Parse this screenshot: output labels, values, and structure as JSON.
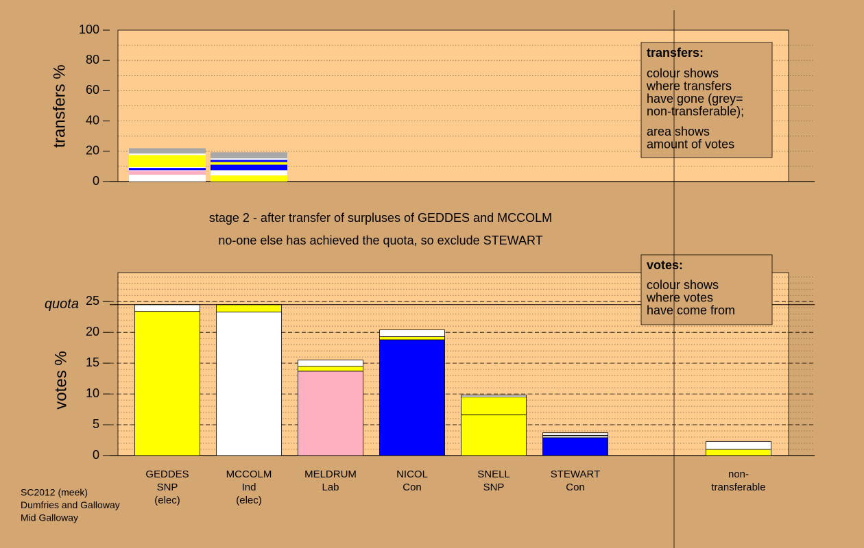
{
  "chart_data": [
    {
      "type": "stacked_bar",
      "ylabel": "transfers %",
      "ylim": [
        0,
        100
      ],
      "yticks": [
        0,
        20,
        40,
        60,
        80,
        100
      ],
      "minor_step": 10,
      "grid": true,
      "stacks": [
        {
          "segments": [
            {
              "color": "#ffffff",
              "value": 4.5
            },
            {
              "color": "#ffb0c0",
              "value": 2.5
            },
            {
              "color": "#ffffff",
              "value": 0.5
            },
            {
              "color": "#0000ff",
              "value": 1.5
            },
            {
              "color": "#ffffff",
              "value": 0.5
            },
            {
              "color": "#ffff00",
              "value": 8
            },
            {
              "color": "#ffffff",
              "value": 1
            },
            {
              "color": "#a8a8a8",
              "value": 3.5
            }
          ]
        },
        {
          "segments": [
            {
              "color": "#ffff00",
              "value": 4
            },
            {
              "color": "#ffffff",
              "value": 3.5
            },
            {
              "color": "#0000ff",
              "value": 3.6
            },
            {
              "color": "#ffff00",
              "value": 1.8
            },
            {
              "color": "#0000ff",
              "value": 1.4
            },
            {
              "color": "#ffffff",
              "value": 1
            },
            {
              "color": "#a8a8a8",
              "value": 4
            }
          ]
        }
      ],
      "annotation": {
        "heading": "transfers:",
        "paragraphs": [
          [
            "colour shows",
            "where transfers",
            "have gone (grey=",
            "non-transferable);"
          ],
          [
            "area shows",
            "amount of votes"
          ]
        ]
      }
    },
    {
      "type": "stacked_bar",
      "ylabel": "votes %",
      "ylim": [
        0,
        29.7
      ],
      "yticks": [
        0,
        5,
        10,
        15,
        20,
        25
      ],
      "minor_step": 1,
      "grid": true,
      "quota": 24.5,
      "quota_label": "quota",
      "subtitle": [
        "stage 2 - after transfer of surpluses of GEDDES and MCCOLM",
        "no-one else has achieved the quota, so exclude STEWART"
      ],
      "categories": [
        [
          "GEDDES",
          "SNP",
          "(elec)"
        ],
        [
          "MCCOLM",
          "Ind",
          "(elec)"
        ],
        [
          "MELDRUM",
          "Lab"
        ],
        [
          "NICOL",
          "Con"
        ],
        [
          "SNELL",
          "SNP"
        ],
        [
          "STEWART",
          "Con"
        ],
        null,
        [
          "non-",
          "transferable"
        ]
      ],
      "stacks": [
        {
          "segments": [
            {
              "color": "#ffff00",
              "value": 23.4
            },
            {
              "color": "#ffffff",
              "value": 1.1
            }
          ]
        },
        {
          "segments": [
            {
              "color": "#ffffff",
              "value": 23.3
            },
            {
              "color": "#ffff00",
              "value": 1.2
            }
          ]
        },
        {
          "segments": [
            {
              "color": "#ffb0c0",
              "value": 13.7
            },
            {
              "color": "#ffff00",
              "value": 0.8
            },
            {
              "color": "#ffffff",
              "value": 1
            }
          ]
        },
        {
          "segments": [
            {
              "color": "#0000ff",
              "value": 18.8
            },
            {
              "color": "#ffff00",
              "value": 0.5
            },
            {
              "color": "#ffffff",
              "value": 1.1
            }
          ]
        },
        {
          "segments": [
            {
              "color": "#ffff00",
              "value": 6.6
            },
            {
              "color": "#ffff00",
              "value": 2.9
            },
            {
              "color": "#ffffff",
              "value": 0.3
            }
          ]
        },
        {
          "segments": [
            {
              "color": "#0000ff",
              "value": 2.9
            },
            {
              "color": "#ffffff",
              "value": 0.3
            },
            {
              "color": "#ffff00",
              "value": 0.1
            },
            {
              "color": "#ffffff",
              "value": 0.4
            }
          ]
        },
        {
          "segments": []
        },
        {
          "segments": [
            {
              "color": "#ffff00",
              "value": 1
            },
            {
              "color": "#ffffff",
              "value": 1.3
            }
          ]
        }
      ],
      "annotation": {
        "heading": "votes:",
        "paragraphs": [
          [
            "colour shows",
            "where votes",
            "have come from"
          ]
        ]
      }
    }
  ],
  "footer": [
    "SC2012 (meek)",
    "Dumfries and Galloway",
    "Mid Galloway"
  ]
}
